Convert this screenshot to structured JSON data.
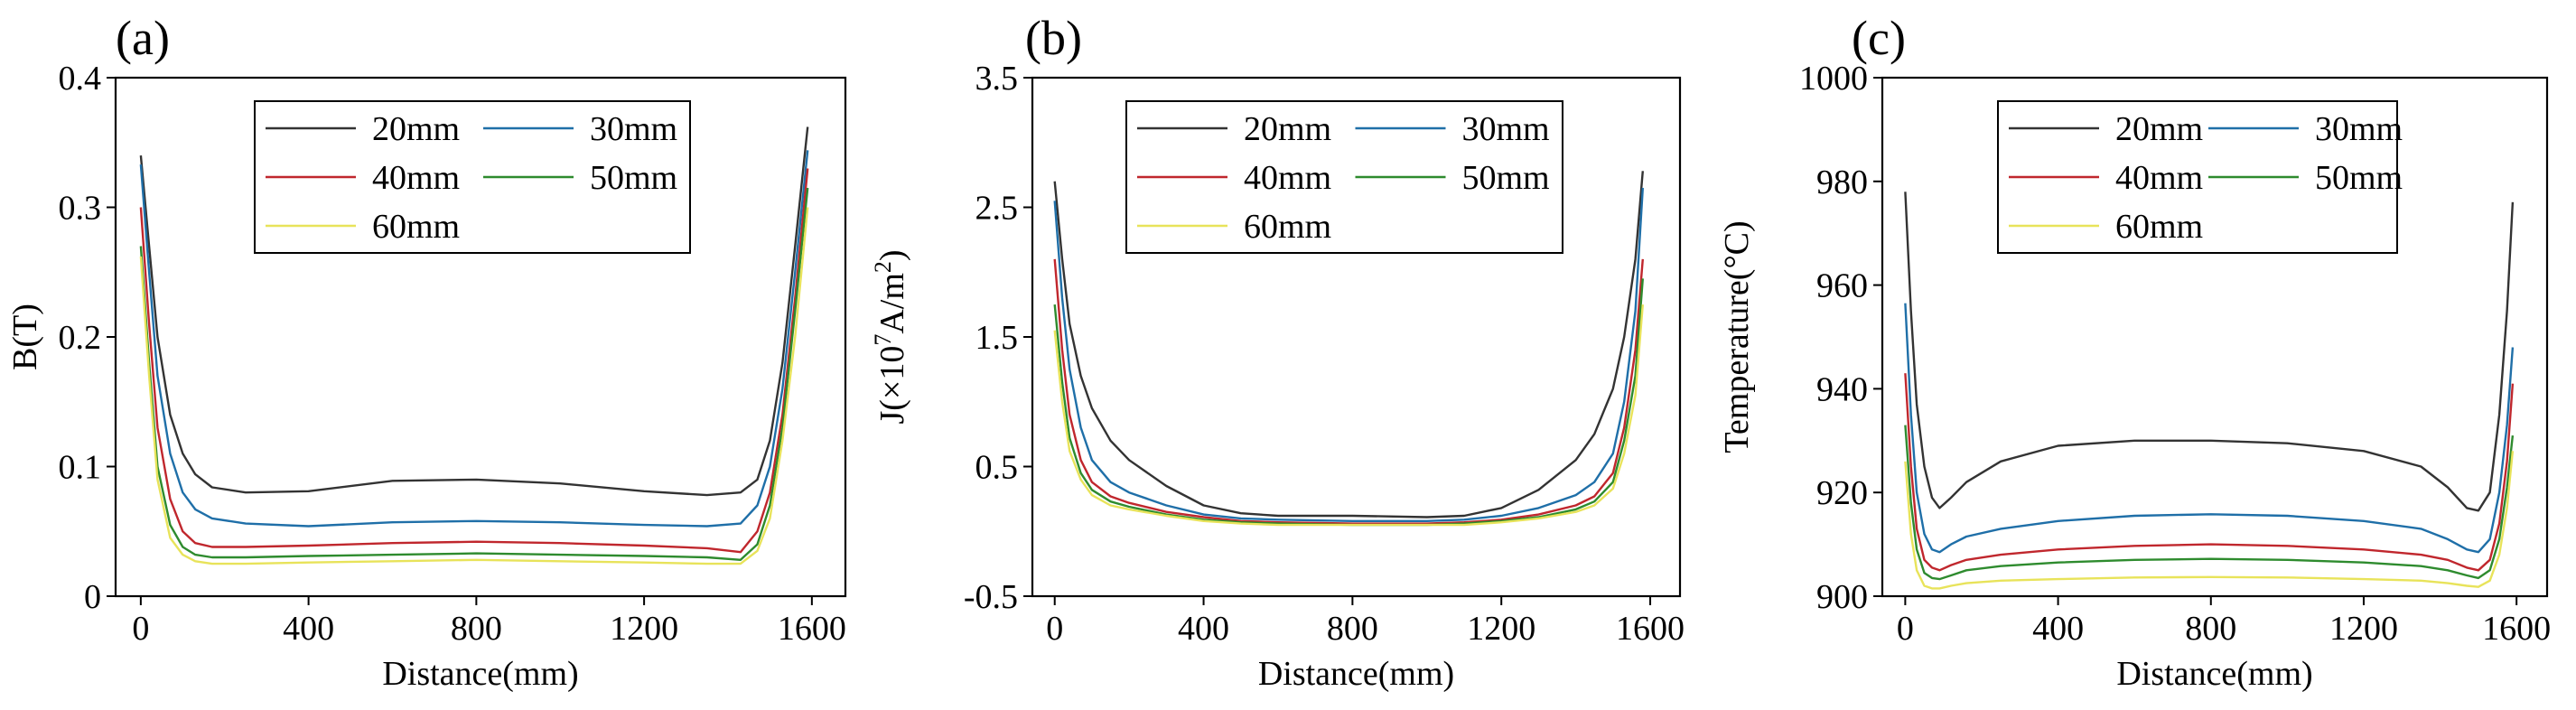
{
  "figure": {
    "panels": [
      "(a)",
      "(b)",
      "(c)"
    ]
  },
  "chart_data": [
    {
      "type": "line",
      "panel": "(a)",
      "title": "",
      "xlabel": "Distance(mm)",
      "ylabel": "B(T)",
      "xlim": [
        -60,
        1680
      ],
      "ylim": [
        0,
        0.4
      ],
      "xticks": [
        0,
        400,
        800,
        1200,
        1600
      ],
      "xtick_labels": [
        "0",
        "400",
        "800",
        "1200",
        "1600"
      ],
      "yticks": [
        0,
        0.1,
        0.2,
        0.3,
        0.4
      ],
      "ytick_labels": [
        "0",
        "0.1",
        "0.2",
        "0.3",
        "0.4"
      ],
      "legend": {
        "placement": "top-center",
        "columns": 2
      },
      "series": [
        {
          "name": "20mm",
          "color": "#333333",
          "x": [
            0,
            20,
            40,
            70,
            100,
            130,
            170,
            250,
            400,
            600,
            800,
            1000,
            1200,
            1350,
            1430,
            1470,
            1500,
            1530,
            1560,
            1590
          ],
          "y": [
            0.34,
            0.27,
            0.2,
            0.14,
            0.11,
            0.094,
            0.084,
            0.08,
            0.081,
            0.089,
            0.09,
            0.087,
            0.081,
            0.078,
            0.08,
            0.09,
            0.12,
            0.18,
            0.27,
            0.362
          ]
        },
        {
          "name": "30mm",
          "color": "#1f6fa8",
          "x": [
            0,
            20,
            40,
            70,
            100,
            130,
            170,
            250,
            400,
            600,
            800,
            1000,
            1200,
            1350,
            1430,
            1470,
            1500,
            1530,
            1560,
            1590
          ],
          "y": [
            0.333,
            0.25,
            0.17,
            0.11,
            0.08,
            0.067,
            0.06,
            0.056,
            0.054,
            0.057,
            0.058,
            0.057,
            0.055,
            0.054,
            0.056,
            0.07,
            0.1,
            0.16,
            0.25,
            0.344
          ]
        },
        {
          "name": "40mm",
          "color": "#c0272d",
          "x": [
            0,
            20,
            40,
            70,
            100,
            130,
            170,
            250,
            400,
            600,
            800,
            1000,
            1200,
            1350,
            1430,
            1470,
            1500,
            1530,
            1560,
            1590
          ],
          "y": [
            0.3,
            0.21,
            0.13,
            0.075,
            0.05,
            0.041,
            0.038,
            0.038,
            0.039,
            0.041,
            0.042,
            0.041,
            0.039,
            0.037,
            0.034,
            0.05,
            0.08,
            0.14,
            0.23,
            0.33
          ]
        },
        {
          "name": "50mm",
          "color": "#2e8b2e",
          "x": [
            0,
            20,
            40,
            70,
            100,
            130,
            170,
            250,
            400,
            600,
            800,
            1000,
            1200,
            1350,
            1430,
            1470,
            1500,
            1530,
            1560,
            1590
          ],
          "y": [
            0.27,
            0.18,
            0.1,
            0.055,
            0.038,
            0.032,
            0.03,
            0.03,
            0.031,
            0.032,
            0.033,
            0.032,
            0.031,
            0.03,
            0.028,
            0.04,
            0.07,
            0.13,
            0.22,
            0.315
          ]
        },
        {
          "name": "60mm",
          "color": "#e8e35a",
          "x": [
            0,
            20,
            40,
            70,
            100,
            130,
            170,
            250,
            400,
            600,
            800,
            1000,
            1200,
            1350,
            1430,
            1470,
            1500,
            1530,
            1560,
            1590
          ],
          "y": [
            0.262,
            0.17,
            0.09,
            0.045,
            0.032,
            0.027,
            0.025,
            0.025,
            0.026,
            0.027,
            0.028,
            0.027,
            0.026,
            0.025,
            0.025,
            0.035,
            0.06,
            0.12,
            0.2,
            0.3
          ]
        }
      ]
    },
    {
      "type": "line",
      "panel": "(b)",
      "title": "",
      "xlabel": "Distance(mm)",
      "ylabel": "J(×10",
      "ylabel_exponent": "7",
      "ylabel_unit": "A/m",
      "ylabel_unit_exponent": "2",
      "ylabel_close": ")",
      "xlim": [
        -60,
        1680
      ],
      "ylim": [
        -0.5,
        3.5
      ],
      "xticks": [
        0,
        400,
        800,
        1200,
        1600
      ],
      "xtick_labels": [
        "0",
        "400",
        "800",
        "1200",
        "1600"
      ],
      "yticks": [
        -0.5,
        0.5,
        1.5,
        2.5,
        3.5
      ],
      "ytick_labels": [
        "-0.5",
        "0.5",
        "1.5",
        "2.5",
        "3.5"
      ],
      "legend": {
        "placement": "top-center",
        "columns": 2
      },
      "series": [
        {
          "name": "20mm",
          "color": "#333333",
          "x": [
            0,
            20,
            40,
            70,
            100,
            150,
            200,
            300,
            400,
            500,
            600,
            800,
            1000,
            1100,
            1200,
            1300,
            1400,
            1450,
            1500,
            1530,
            1560,
            1580
          ],
          "y": [
            2.7,
            2.1,
            1.6,
            1.2,
            0.95,
            0.7,
            0.55,
            0.35,
            0.2,
            0.14,
            0.12,
            0.12,
            0.11,
            0.12,
            0.18,
            0.32,
            0.55,
            0.75,
            1.1,
            1.5,
            2.1,
            2.78
          ]
        },
        {
          "name": "30mm",
          "color": "#1f6fa8",
          "x": [
            0,
            20,
            40,
            70,
            100,
            150,
            200,
            300,
            400,
            500,
            600,
            800,
            1000,
            1100,
            1200,
            1300,
            1400,
            1450,
            1500,
            1530,
            1560,
            1580
          ],
          "y": [
            2.55,
            1.8,
            1.25,
            0.8,
            0.55,
            0.38,
            0.3,
            0.2,
            0.13,
            0.1,
            0.09,
            0.08,
            0.08,
            0.09,
            0.12,
            0.18,
            0.28,
            0.38,
            0.6,
            1.0,
            1.7,
            2.65
          ]
        },
        {
          "name": "40mm",
          "color": "#c0272d",
          "x": [
            0,
            20,
            40,
            70,
            100,
            150,
            200,
            300,
            400,
            500,
            600,
            800,
            1000,
            1100,
            1200,
            1300,
            1400,
            1450,
            1500,
            1530,
            1560,
            1580
          ],
          "y": [
            2.1,
            1.4,
            0.9,
            0.55,
            0.38,
            0.27,
            0.22,
            0.15,
            0.11,
            0.08,
            0.07,
            0.06,
            0.06,
            0.07,
            0.09,
            0.13,
            0.2,
            0.27,
            0.45,
            0.8,
            1.4,
            2.1
          ]
        },
        {
          "name": "50mm",
          "color": "#2e8b2e",
          "x": [
            0,
            20,
            40,
            70,
            100,
            150,
            200,
            300,
            400,
            500,
            600,
            800,
            1000,
            1100,
            1200,
            1300,
            1400,
            1450,
            1500,
            1530,
            1560,
            1580
          ],
          "y": [
            1.75,
            1.15,
            0.72,
            0.45,
            0.32,
            0.23,
            0.19,
            0.13,
            0.09,
            0.07,
            0.06,
            0.05,
            0.05,
            0.06,
            0.08,
            0.11,
            0.17,
            0.23,
            0.38,
            0.7,
            1.2,
            1.95
          ]
        },
        {
          "name": "60mm",
          "color": "#e8e35a",
          "x": [
            0,
            20,
            40,
            70,
            100,
            150,
            200,
            300,
            400,
            500,
            600,
            800,
            1000,
            1100,
            1200,
            1300,
            1400,
            1450,
            1500,
            1530,
            1560,
            1580
          ],
          "y": [
            1.55,
            1.0,
            0.62,
            0.4,
            0.28,
            0.2,
            0.17,
            0.12,
            0.08,
            0.06,
            0.05,
            0.05,
            0.05,
            0.05,
            0.07,
            0.1,
            0.15,
            0.2,
            0.33,
            0.6,
            1.05,
            1.75
          ]
        }
      ]
    },
    {
      "type": "line",
      "panel": "(c)",
      "title": "",
      "xlabel": "Distance(mm)",
      "ylabel": "Temperature(°C)",
      "xlim": [
        -60,
        1680
      ],
      "ylim": [
        900,
        1000
      ],
      "xticks": [
        0,
        400,
        800,
        1200,
        1600
      ],
      "xtick_labels": [
        "0",
        "400",
        "800",
        "1200",
        "1600"
      ],
      "yticks": [
        900,
        920,
        940,
        960,
        980,
        1000
      ],
      "ytick_labels": [
        "900",
        "920",
        "940",
        "960",
        "980",
        "1000"
      ],
      "legend": {
        "placement": "top-center",
        "columns": 2
      },
      "series": [
        {
          "name": "20mm",
          "color": "#333333",
          "x": [
            0,
            15,
            30,
            50,
            70,
            90,
            120,
            160,
            250,
            400,
            600,
            800,
            1000,
            1200,
            1350,
            1420,
            1470,
            1500,
            1530,
            1555,
            1575,
            1590
          ],
          "y": [
            978,
            955,
            937,
            925,
            919,
            917,
            919,
            922,
            926,
            929,
            930,
            930,
            929.5,
            928,
            925,
            921,
            917,
            916.5,
            920,
            935,
            955,
            976
          ]
        },
        {
          "name": "30mm",
          "color": "#1f6fa8",
          "x": [
            0,
            15,
            30,
            50,
            70,
            90,
            120,
            160,
            250,
            400,
            600,
            800,
            1000,
            1200,
            1350,
            1420,
            1470,
            1500,
            1530,
            1555,
            1575,
            1590
          ],
          "y": [
            956.5,
            935,
            920,
            912,
            909,
            908.5,
            910,
            911.5,
            913,
            914.5,
            915.5,
            915.8,
            915.5,
            914.5,
            913,
            911,
            909,
            908.5,
            911,
            920,
            933,
            948
          ]
        },
        {
          "name": "40mm",
          "color": "#c0272d",
          "x": [
            0,
            15,
            30,
            50,
            70,
            90,
            120,
            160,
            250,
            400,
            600,
            800,
            1000,
            1200,
            1350,
            1420,
            1470,
            1500,
            1530,
            1555,
            1575,
            1590
          ],
          "y": [
            943,
            925,
            913,
            907,
            905.5,
            905,
            906,
            907,
            908,
            909,
            909.7,
            910,
            909.7,
            909,
            908,
            907,
            905.5,
            905,
            907,
            914,
            926,
            941
          ]
        },
        {
          "name": "50mm",
          "color": "#2e8b2e",
          "x": [
            0,
            15,
            30,
            50,
            70,
            90,
            120,
            160,
            250,
            400,
            600,
            800,
            1000,
            1200,
            1350,
            1420,
            1470,
            1500,
            1530,
            1555,
            1575,
            1590
          ],
          "y": [
            933,
            918,
            909,
            904.5,
            903.5,
            903.3,
            904,
            905,
            905.8,
            906.5,
            907,
            907.2,
            907,
            906.5,
            905.8,
            905,
            904,
            903.5,
            905,
            911,
            921,
            931
          ]
        },
        {
          "name": "60mm",
          "color": "#e8e35a",
          "x": [
            0,
            15,
            30,
            50,
            70,
            90,
            120,
            160,
            250,
            400,
            600,
            800,
            1000,
            1200,
            1350,
            1420,
            1470,
            1500,
            1530,
            1555,
            1575,
            1590
          ],
          "y": [
            926,
            912,
            905,
            902,
            901.5,
            901.5,
            902,
            902.5,
            903,
            903.3,
            903.6,
            903.7,
            903.6,
            903.3,
            903,
            902.5,
            902,
            901.8,
            903,
            908,
            917,
            928
          ]
        }
      ]
    }
  ]
}
